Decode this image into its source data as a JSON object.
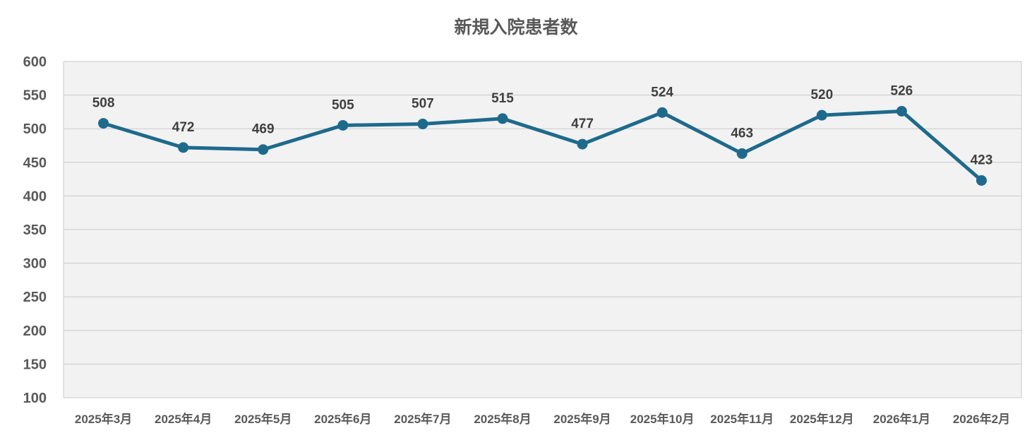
{
  "chart_data": {
    "type": "line",
    "title": "新規入院患者数",
    "categories": [
      "2025年3月",
      "2025年4月",
      "2025年5月",
      "2025年6月",
      "2025年7月",
      "2025年8月",
      "2025年9月",
      "2025年10月",
      "2025年11月",
      "2025年12月",
      "2026年1月",
      "2026年2月"
    ],
    "values": [
      508,
      472,
      469,
      505,
      507,
      515,
      477,
      524,
      463,
      520,
      526,
      423
    ],
    "xlabel": "",
    "ylabel": "",
    "ylim": [
      100,
      600
    ],
    "ytick_step": 50,
    "grid": true,
    "legend_position": "none",
    "data_labels_visible": true,
    "colors": {
      "line": "#1e6a8c",
      "marker": "#1e6a8c",
      "plot_background": "#f2f2f2",
      "gridline": "#c9c9c9",
      "title_color": "#595959",
      "tick_label_color": "#595959",
      "data_label_color": "#404040",
      "page_background": "#ffffff"
    }
  }
}
